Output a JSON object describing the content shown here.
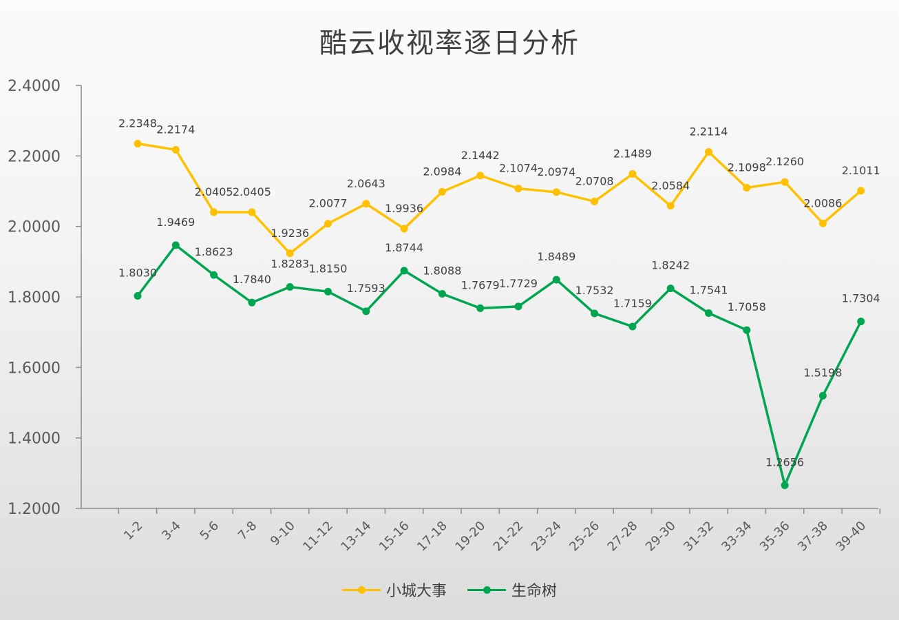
{
  "chart_data": {
    "type": "line",
    "title": "酷云收视率逐日分析",
    "categories": [
      "1-2",
      "3-4",
      "5-6",
      "7-8",
      "9-10",
      "11-12",
      "13-14",
      "15-16",
      "17-18",
      "19-20",
      "21-22",
      "23-24",
      "25-26",
      "27-28",
      "29-30",
      "31-32",
      "33-34",
      "35-36",
      "37-38",
      "39-40"
    ],
    "ylim": [
      1.2,
      2.4
    ],
    "yticks": [
      "1.2000",
      "1.4000",
      "1.6000",
      "1.8000",
      "2.0000",
      "2.2000",
      "2.4000"
    ],
    "grid": false,
    "legend_position": "bottom",
    "series": [
      {
        "name": "小城大事",
        "color": "#FFC000",
        "values": [
          2.2348,
          2.2174,
          2.0405,
          2.0405,
          1.9236,
          2.0077,
          2.0643,
          1.9936,
          2.0984,
          2.1442,
          2.1074,
          2.0974,
          2.0708,
          2.1489,
          2.0584,
          2.2114,
          2.1098,
          2.126,
          2.0086,
          2.1011
        ],
        "labels": [
          "2.2348",
          "2.2174",
          "2.0405",
          "2.0405",
          "1.9236",
          "2.0077",
          "2.0643",
          "1.9936",
          "2.0984",
          "2.1442",
          "2.1074",
          "2.0974",
          "2.0708",
          "2.1489",
          "2.0584",
          "2.2114",
          "2.1098",
          "2.1260",
          "2.0086",
          "2.1011"
        ]
      },
      {
        "name": "生命树",
        "color": "#00A550",
        "values": [
          1.803,
          1.9469,
          1.8623,
          1.784,
          1.8283,
          1.815,
          1.7593,
          1.8744,
          1.8088,
          1.7679,
          1.7729,
          1.8489,
          1.7532,
          1.7159,
          1.8242,
          1.7541,
          1.7058,
          1.2656,
          1.5198,
          1.7304
        ],
        "labels": [
          "1.8030",
          "1.9469",
          "1.8623",
          "1.7840",
          "1.8283",
          "1.8150",
          "1.7593",
          "1.8744",
          "1.8088",
          "1.7679",
          "1.7729",
          "1.8489",
          "1.7532",
          "1.7159",
          "1.8242",
          "1.7541",
          "1.7058",
          "1.2656",
          "1.5198",
          "1.7304"
        ]
      }
    ]
  }
}
